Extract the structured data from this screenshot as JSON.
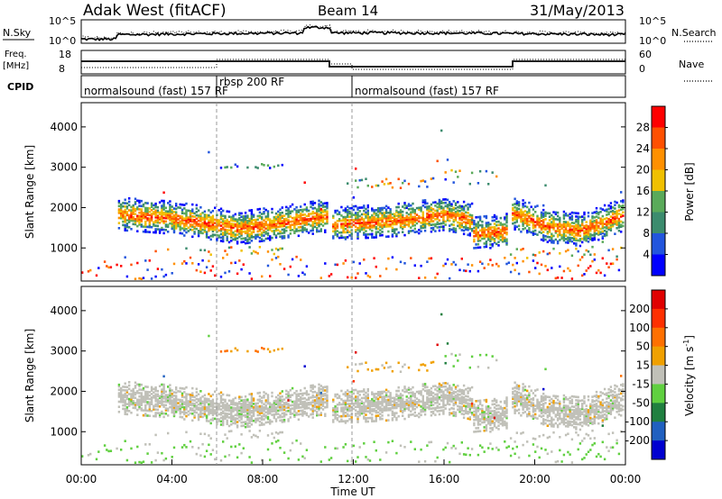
{
  "header": {
    "station": "Adak West (fitACF)",
    "beam": "Beam 14",
    "date": "31/May/2013"
  },
  "top_panels": {
    "nsky_label": "N.Sky",
    "nsky_ticks": [
      "10^5",
      "10^0"
    ],
    "nsearch_label": "N.Search",
    "nsearch_ticks": [
      "10^5",
      "10^0"
    ],
    "freq_label": "Freq.",
    "freq_unit": "[MHz]",
    "freq_ticks": [
      "18",
      "8"
    ],
    "nave_label": "Nave",
    "nave_ticks": [
      "60",
      "0"
    ],
    "cpid_label": "CPID",
    "cpid_segments": [
      {
        "start": 0,
        "end": 6,
        "label": "normalsound (fast) 157 RF"
      },
      {
        "start": 6,
        "end": 12,
        "label": "rbsp 200 RF"
      },
      {
        "start": 12,
        "end": 24,
        "label": "normalsound (fast) 157 RF"
      }
    ]
  },
  "chart_data": [
    {
      "type": "heatmap",
      "panel": "power",
      "xlabel": "",
      "ylabel": "Slant Range [km]",
      "xlim": [
        0,
        24
      ],
      "ylim": [
        180,
        4600
      ],
      "yticks": [
        "1000",
        "2000",
        "3000",
        "4000"
      ],
      "colorbar": {
        "label": "Power [dB]",
        "range": [
          0,
          32
        ],
        "ticks": [
          "4",
          "8",
          "12",
          "16",
          "20",
          "24",
          "28"
        ],
        "colors": [
          "#0000ff",
          "#2255dd",
          "#3c8c6e",
          "#5aaa5a",
          "#f0c000",
          "#ff9000",
          "#ff5000",
          "#ff0000"
        ]
      },
      "bands": [
        {
          "x": [
            1.6,
            4.0,
            7.0,
            10.8
          ],
          "y": [
            1800,
            1700,
            1450,
            1750
          ]
        },
        {
          "x": [
            11.0,
            14.0,
            16.0,
            17.2
          ],
          "y": [
            1550,
            1650,
            1800,
            1650
          ]
        },
        {
          "x": [
            17.2,
            18.8
          ],
          "y": [
            1300,
            1400
          ]
        },
        {
          "x": [
            18.9,
            20.5,
            22.0,
            24.0
          ],
          "y": [
            1850,
            1500,
            1400,
            1800
          ]
        }
      ]
    },
    {
      "type": "heatmap",
      "panel": "velocity",
      "xlabel": "Time UT",
      "ylabel": "Slant Range [km]",
      "xlim": [
        0,
        24
      ],
      "ylim": [
        180,
        4600
      ],
      "xticks": [
        "00:00",
        "04:00",
        "08:00",
        "12:00",
        "16:00",
        "20:00",
        "00:00"
      ],
      "yticks": [
        "1000",
        "2000",
        "3000",
        "4000"
      ],
      "colorbar": {
        "label": "Velocity [m s^-1]",
        "label_main": "Velocity [m s",
        "label_exp": "-1",
        "label_end": "]",
        "range": [
          -250,
          250
        ],
        "ticks": [
          "200",
          "100",
          "50",
          "15",
          "-15",
          "-50",
          "-100",
          "-200"
        ],
        "colors": [
          "#0000d0",
          "#2060c0",
          "#208040",
          "#60d040",
          "#c0c0b8",
          "#f0a000",
          "#ff7000",
          "#ff3000",
          "#e00000"
        ]
      }
    }
  ]
}
